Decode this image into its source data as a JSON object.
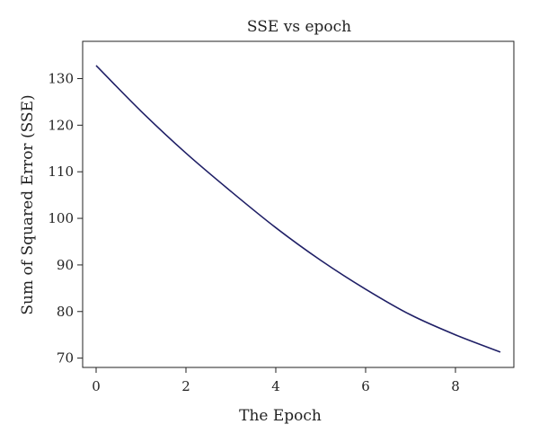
{
  "chart_data": {
    "type": "line",
    "title": "SSE vs epoch",
    "xlabel": "The Epoch",
    "ylabel": "Sum of Squared Error (SSE)",
    "xlim": [
      -0.3,
      9.3
    ],
    "ylim": [
      68,
      138
    ],
    "xticks": [
      0,
      2,
      4,
      6,
      8
    ],
    "yticks": [
      70,
      80,
      90,
      100,
      110,
      120,
      130
    ],
    "grid": false,
    "legend": "none",
    "line_color": "#1f1f66",
    "series": [
      {
        "x": [
          0,
          1,
          2,
          3,
          4,
          5,
          6,
          7,
          8,
          9
        ],
        "values": [
          132.8,
          123.0,
          114.0,
          105.8,
          98.0,
          91.0,
          84.8,
          79.3,
          75.0,
          71.3
        ]
      }
    ]
  }
}
